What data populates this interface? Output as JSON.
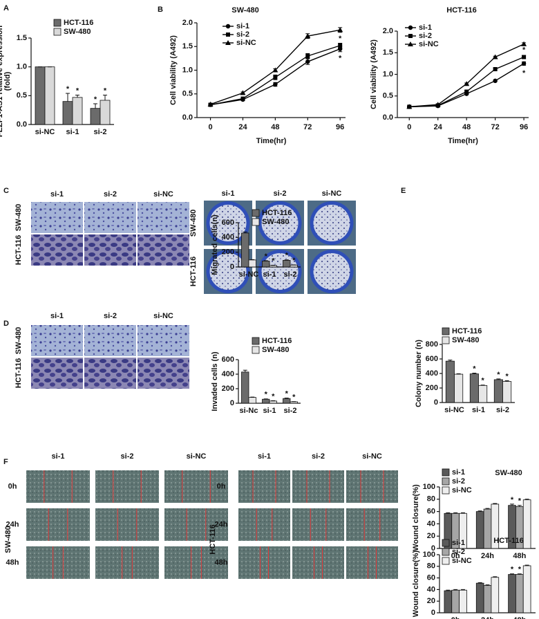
{
  "panel_letters": [
    "A",
    "B",
    "C",
    "D",
    "E",
    "F"
  ],
  "chart_data": [
    {
      "type": "bar",
      "ylabel": [
        "FEZF1-AS1 relative expression",
        "(fold)"
      ],
      "categories": [
        "si-NC",
        "si-1",
        "si-2"
      ],
      "series": [
        {
          "name": "HCT-116",
          "color": "#6b6b6b",
          "values": [
            1.0,
            0.4,
            0.28
          ],
          "errors": [
            0,
            0.14,
            0.08
          ],
          "significance": [
            null,
            "*",
            "*"
          ]
        },
        {
          "name": "SW-480",
          "color": "#d9d9d9",
          "values": [
            1.0,
            0.47,
            0.42
          ],
          "errors": [
            0,
            0.04,
            0.09
          ],
          "significance": [
            null,
            "*",
            "*"
          ]
        }
      ],
      "ylim": [
        0,
        1.5
      ],
      "yticks": [
        {
          "value": 0,
          "label": "0.0"
        },
        0.5,
        {
          "value": 1,
          "label": "1.0"
        },
        1.5
      ]
    },
    {
      "type": "line",
      "title": "SW-480",
      "xlabel": "Time(hr)",
      "ylabel": "Cell viability (A492)",
      "x": [
        0,
        24,
        48,
        72,
        96
      ],
      "xlim": [
        -10,
        100
      ],
      "xticks": [
        0,
        24,
        48,
        72,
        96
      ],
      "ylim": [
        0,
        2
      ],
      "yticks": [
        {
          "value": 0,
          "label": "0.0"
        },
        0.5,
        {
          "value": 1,
          "label": "1.0"
        },
        1.5,
        {
          "value": 2,
          "label": "2.0"
        }
      ],
      "series": [
        {
          "name": "si-1",
          "color": "#000000",
          "marker": "circle",
          "values": [
            0.27,
            0.38,
            0.7,
            1.18,
            1.45
          ],
          "errors": [
            0.02,
            0.02,
            0.04,
            0.06,
            0.06
          ],
          "significance": [
            null,
            null,
            null,
            null,
            "*"
          ]
        },
        {
          "name": "si-2",
          "color": "#000000",
          "marker": "square",
          "values": [
            0.27,
            0.4,
            0.85,
            1.3,
            1.52
          ],
          "errors": [
            0.02,
            0.02,
            0.05,
            0.05,
            0.05
          ],
          "significance": [
            null,
            null,
            null,
            null,
            "*"
          ]
        },
        {
          "name": "si-NC",
          "color": "#000000",
          "marker": "triangle",
          "values": [
            0.28,
            0.52,
            1.0,
            1.72,
            1.85
          ],
          "errors": [
            0.02,
            0.02,
            0.03,
            0.05,
            0.05
          ],
          "significance": [
            null,
            null,
            null,
            null,
            null
          ]
        }
      ]
    },
    {
      "type": "line",
      "title": "HCT-116",
      "xlabel": "Time(hr)",
      "ylabel": "Cell viability (A492)",
      "x": [
        0,
        24,
        48,
        72,
        96
      ],
      "xlim": [
        -10,
        100
      ],
      "xticks": [
        0,
        24,
        48,
        72,
        96
      ],
      "ylim": [
        0,
        2
      ],
      "yticks": [
        {
          "value": 0,
          "label": "0.0"
        },
        0.5,
        {
          "value": 1,
          "label": "1.0"
        },
        1.5,
        {
          "value": 2,
          "label": "2.0"
        }
      ],
      "series": [
        {
          "name": "si-1",
          "color": "#000000",
          "marker": "circle",
          "values": [
            0.25,
            0.27,
            0.55,
            0.85,
            1.25
          ],
          "errors": [
            0.01,
            0.01,
            0.02,
            0.02,
            0.04
          ],
          "significance": [
            null,
            null,
            null,
            null,
            "*"
          ]
        },
        {
          "name": "si-2",
          "color": "#000000",
          "marker": "square",
          "values": [
            0.25,
            0.28,
            0.6,
            1.12,
            1.4
          ],
          "errors": [
            0.01,
            0.01,
            0.02,
            0.02,
            0.04
          ],
          "significance": [
            null,
            null,
            null,
            null,
            "*"
          ]
        },
        {
          "name": "si-NC",
          "color": "#000000",
          "marker": "triangle",
          "values": [
            0.25,
            0.3,
            0.78,
            1.4,
            1.7
          ],
          "errors": [
            0.01,
            0.01,
            0.02,
            0.02,
            0.03
          ],
          "significance": [
            null,
            null,
            null,
            null,
            null
          ]
        }
      ]
    },
    {
      "type": "bar",
      "ylabel": "Migrated cells(n)",
      "categories": [
        "si-NC",
        "si-1",
        "si-2"
      ],
      "series": [
        {
          "name": "HCT-116",
          "color": "#6b6b6b",
          "values": [
            460,
            80,
            90
          ],
          "errors": [
            15,
            5,
            6
          ],
          "significance": [
            null,
            "*",
            "*"
          ]
        },
        {
          "name": "SW-480",
          "color": "#e6e6e6",
          "values": [
            95,
            20,
            25
          ],
          "errors": [
            5,
            3,
            3
          ],
          "significance": [
            null,
            "*",
            "*"
          ]
        }
      ],
      "ylim": [
        0,
        600
      ],
      "yticks": [
        0,
        200,
        400,
        600
      ]
    },
    {
      "type": "bar",
      "ylabel": "Invaded cells (n)",
      "categories": [
        "si-Nc",
        "si-1",
        "si-2"
      ],
      "series": [
        {
          "name": "HCT-116",
          "color": "#6b6b6b",
          "values": [
            430,
            55,
            65
          ],
          "errors": [
            25,
            5,
            6
          ],
          "significance": [
            null,
            "*",
            "*"
          ]
        },
        {
          "name": "SW-480",
          "color": "#e6e6e6",
          "values": [
            80,
            30,
            20
          ],
          "errors": [
            5,
            4,
            3
          ],
          "significance": [
            null,
            "*",
            "*"
          ]
        }
      ],
      "ylim": [
        0,
        600
      ],
      "yticks": [
        0,
        200,
        400,
        600
      ]
    },
    {
      "type": "bar",
      "ylabel": "Colony number (n)",
      "categories": [
        "si-NC",
        "si-1",
        "si-2"
      ],
      "series": [
        {
          "name": "HCT-116",
          "color": "#6b6b6b",
          "values": [
            570,
            395,
            315
          ],
          "errors": [
            15,
            10,
            10
          ],
          "significance": [
            null,
            "*",
            "*"
          ]
        },
        {
          "name": "SW-480",
          "color": "#e6e6e6",
          "values": [
            390,
            235,
            290
          ],
          "errors": [
            6,
            6,
            10
          ],
          "significance": [
            null,
            "*",
            "*"
          ]
        }
      ],
      "ylim": [
        0,
        800
      ],
      "yticks": [
        0,
        200,
        400,
        600,
        800
      ]
    },
    {
      "type": "bar",
      "title": "SW-480",
      "ylabel": "Wound closure(%)",
      "categories": [
        "0h",
        "24h",
        "48h"
      ],
      "series": [
        {
          "name": "si-1",
          "color": "#5a5a5a",
          "values": [
            57,
            60,
            70
          ],
          "errors": [
            1,
            1,
            2
          ],
          "significance": [
            null,
            null,
            "*"
          ]
        },
        {
          "name": "si-2",
          "color": "#a6a6a6",
          "values": [
            57,
            64,
            68
          ],
          "errors": [
            1,
            1,
            2
          ],
          "significance": [
            null,
            null,
            "*"
          ]
        },
        {
          "name": "si-NC",
          "color": "#eeeeee",
          "values": [
            57,
            72,
            79
          ],
          "errors": [
            1,
            1,
            1
          ],
          "significance": [
            null,
            null,
            null
          ]
        }
      ],
      "ylim": [
        0,
        100
      ],
      "yticks": [
        0,
        20,
        40,
        60,
        80,
        100
      ]
    },
    {
      "type": "bar",
      "title": "HCT-116",
      "ylabel": "Wound closure(%)",
      "categories": [
        "0h",
        "24h",
        "48h"
      ],
      "series": [
        {
          "name": "si-1",
          "color": "#5a5a5a",
          "values": [
            38,
            51,
            66
          ],
          "errors": [
            1,
            1,
            1
          ],
          "significance": [
            null,
            null,
            "*"
          ]
        },
        {
          "name": "si-2",
          "color": "#a6a6a6",
          "values": [
            39,
            47,
            66
          ],
          "errors": [
            1,
            1,
            1
          ],
          "significance": [
            null,
            null,
            "*"
          ]
        },
        {
          "name": "si-NC",
          "color": "#eeeeee",
          "values": [
            39,
            61,
            81
          ],
          "errors": [
            1,
            1,
            1
          ],
          "significance": [
            null,
            null,
            null
          ]
        }
      ],
      "ylim": [
        0,
        100
      ],
      "yticks": [
        0,
        20,
        40,
        60,
        80,
        100
      ]
    }
  ],
  "image_grids": [
    {
      "columns": [
        "si-1",
        "si-2",
        "si-NC"
      ],
      "rows": [
        "SW-480",
        "HCT-116"
      ]
    },
    {
      "columns": [
        "si-1",
        "si-2",
        "si-NC"
      ],
      "rows": [
        "SW-480",
        "HCT-116"
      ]
    },
    {
      "columns": [
        "si-1",
        "si-2",
        "si-NC"
      ],
      "rows": [
        "SW-480",
        "HCT-116"
      ]
    },
    {
      "cell_line": "SW-480",
      "columns": [
        "si-1",
        "si-2",
        "si-NC"
      ],
      "rows": [
        "0h",
        "24h",
        "48h"
      ]
    },
    {
      "cell_line": "HCT-116",
      "columns": [
        "si-1",
        "si-2",
        "si-NC"
      ],
      "rows": [
        "0h",
        "24h",
        "48h"
      ]
    }
  ]
}
